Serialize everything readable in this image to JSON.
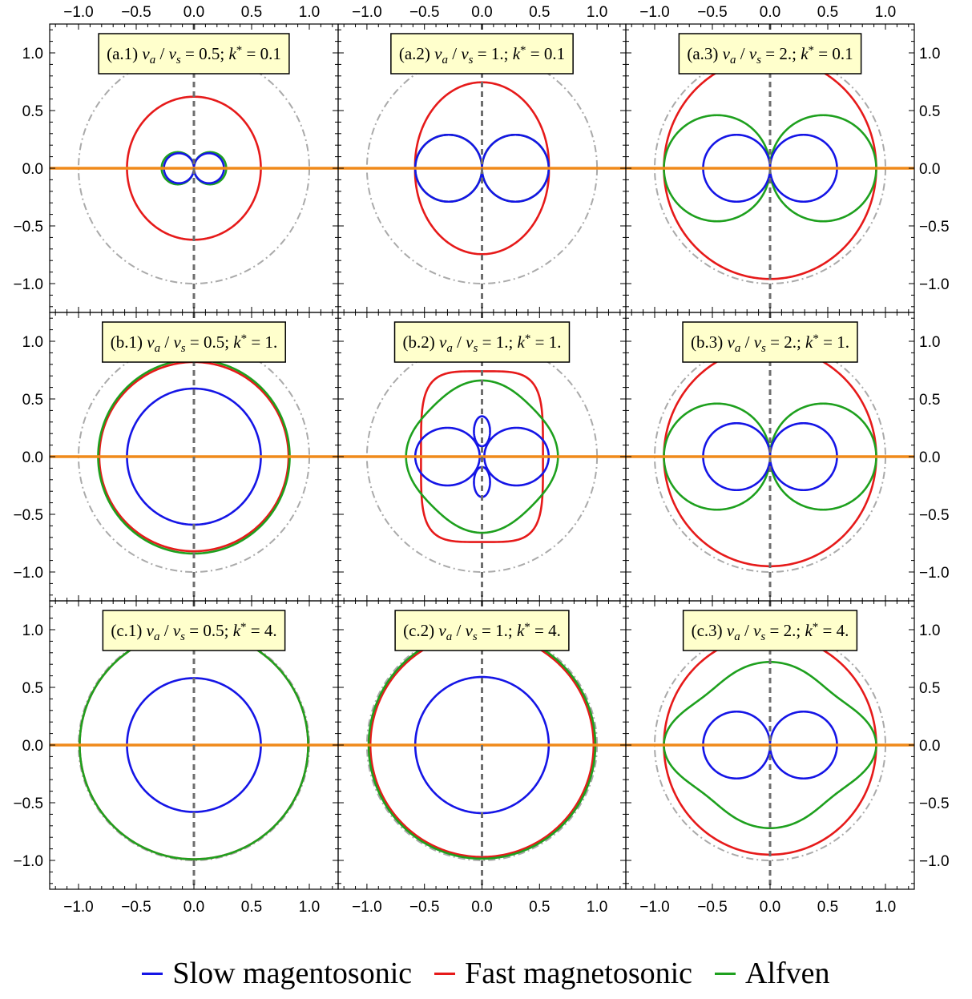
{
  "chart_data": {
    "type": "line",
    "chart_kind": "polar dispersion plots (3x3 grid of panels)",
    "xlim": [
      -1.25,
      1.25
    ],
    "ylim": [
      -1.25,
      1.25
    ],
    "xticks": [
      "−1.0",
      "−0.5",
      "0.0",
      "0.5",
      "1.0"
    ],
    "yticks": [
      "1.0",
      "0.5",
      "0.0",
      "−0.5",
      "−1.0"
    ],
    "grid": false,
    "legend_position": "bottom",
    "reference_lines": {
      "horizontal_y0": {
        "color": "#f08a1a",
        "style": "solid"
      },
      "vertical_x0": {
        "color": "#6e6e6e",
        "style": "dashed"
      },
      "unit_circle": {
        "color": "#aaaaaa",
        "style": "dash-dot"
      }
    },
    "series_styles": {
      "slow": {
        "color": "#1515e6"
      },
      "fast": {
        "color": "#e61a1a"
      },
      "alfven": {
        "color": "#1ea01e"
      }
    },
    "legend": [
      {
        "key": "slow",
        "label": "Slow magentosonic",
        "color": "#1515e6"
      },
      {
        "key": "fast",
        "label": "Fast magnetosonic",
        "color": "#e61a1a"
      },
      {
        "key": "alfven",
        "label": "Alfven",
        "color": "#1ea01e"
      }
    ],
    "panels": [
      {
        "id": "a.1",
        "label": [
          "(a.1) ",
          "v",
          "a",
          " / ",
          "v",
          "s",
          " = 0.5; ",
          "k",
          "*",
          " = 0.1"
        ],
        "outer_circle_r": 1.0,
        "series": {
          "slow": {
            "kind": "lobes",
            "r": 0.13
          },
          "alfven": {
            "kind": "lobes",
            "r": 0.14
          },
          "fast": {
            "kind": "ellipse",
            "rx": 0.58,
            "ry": 0.62
          }
        }
      },
      {
        "id": "a.2",
        "label": [
          "(a.2) ",
          "v",
          "a",
          " / ",
          "v",
          "s",
          " = 1.; ",
          "k",
          "*",
          " = 0.1"
        ],
        "outer_circle_r": 1.0,
        "series": {
          "slow": {
            "kind": "lobes",
            "r": 0.29
          },
          "alfven": {
            "kind": "lobes",
            "r": 0.29
          },
          "fast": {
            "kind": "pinched",
            "w": 0.61,
            "h": 0.745,
            "pinch": 0.58
          }
        }
      },
      {
        "id": "a.3",
        "label": [
          "(a.3) ",
          "v",
          "a",
          " / ",
          "v",
          "s",
          " = 2.; ",
          "k",
          "*",
          " = 0.1"
        ],
        "outer_circle_r": 1.0,
        "series": {
          "slow": {
            "kind": "lobes",
            "r": 0.29
          },
          "alfven": {
            "kind": "lobes",
            "r": 0.46
          },
          "fast": {
            "kind": "ellipse",
            "rx": 0.92,
            "ry": 0.96
          }
        }
      },
      {
        "id": "b.1",
        "label": [
          "(b.1) ",
          "v",
          "a",
          " / ",
          "v",
          "s",
          " = 0.5; ",
          "k",
          "*",
          " = 1."
        ],
        "outer_circle_r": 1.0,
        "series": {
          "slow": {
            "kind": "ellipse",
            "rx": 0.58,
            "ry": 0.59
          },
          "fast": {
            "kind": "ellipse",
            "rx": 0.82,
            "ry": 0.82
          },
          "alfven": {
            "kind": "ellipse",
            "rx": 0.83,
            "ry": 0.84
          }
        }
      },
      {
        "id": "b.2",
        "label": [
          "(b.2) ",
          "v",
          "a",
          " / ",
          "v",
          "s",
          " = 1.; ",
          "k",
          "*",
          " = 1."
        ],
        "outer_circle_r": 1.0,
        "series": {
          "fast": {
            "kind": "rect_rounded",
            "w": 0.53,
            "h": 0.74,
            "shoulder": 0.36
          },
          "alfven": {
            "kind": "cross",
            "w": 0.66,
            "h": 0.66,
            "neck": 0.28
          },
          "slow": {
            "kind": "butterfly",
            "w": 0.58,
            "h": 0.35
          }
        }
      },
      {
        "id": "b.3",
        "label": [
          "(b.3) ",
          "v",
          "a",
          " / ",
          "v",
          "s",
          " = 2.; ",
          "k",
          "*",
          " = 1."
        ],
        "outer_circle_r": 1.0,
        "series": {
          "slow": {
            "kind": "lobes",
            "r": 0.29
          },
          "alfven": {
            "kind": "lobes",
            "r": 0.46
          },
          "fast": {
            "kind": "ellipse",
            "rx": 0.92,
            "ry": 0.95
          }
        }
      },
      {
        "id": "c.1",
        "label": [
          "(c.1) ",
          "v",
          "a",
          " / ",
          "v",
          "s",
          " = 0.5; ",
          "k",
          "*",
          " = 4."
        ],
        "outer_circle_r": 1.0,
        "series": {
          "slow": {
            "kind": "ellipse",
            "rx": 0.58,
            "ry": 0.58
          },
          "fast": {
            "kind": "ellipse",
            "rx": 0.99,
            "ry": 0.99
          },
          "alfven": {
            "kind": "ellipse",
            "rx": 0.99,
            "ry": 0.99
          }
        }
      },
      {
        "id": "c.2",
        "label": [
          "(c.2) ",
          "v",
          "a",
          " / ",
          "v",
          "s",
          " = 1.; ",
          "k",
          "*",
          " = 4."
        ],
        "outer_circle_r": 1.0,
        "series": {
          "slow": {
            "kind": "ellipse",
            "rx": 0.58,
            "ry": 0.59
          },
          "fast": {
            "kind": "ellipse",
            "rx": 0.97,
            "ry": 0.97
          },
          "alfven": {
            "kind": "ellipse",
            "rx": 0.985,
            "ry": 0.985
          }
        }
      },
      {
        "id": "c.3",
        "label": [
          "(c.3) ",
          "v",
          "a",
          " / ",
          "v",
          "s",
          " = 2.; ",
          "k",
          "*",
          " = 4."
        ],
        "outer_circle_r": 1.0,
        "series": {
          "slow": {
            "kind": "lobes",
            "r": 0.29
          },
          "fast": {
            "kind": "ellipse",
            "rx": 0.92,
            "ry": 0.95
          },
          "alfven": {
            "kind": "cross",
            "w": 0.92,
            "h": 0.72,
            "neck": 0.52
          }
        }
      }
    ]
  }
}
